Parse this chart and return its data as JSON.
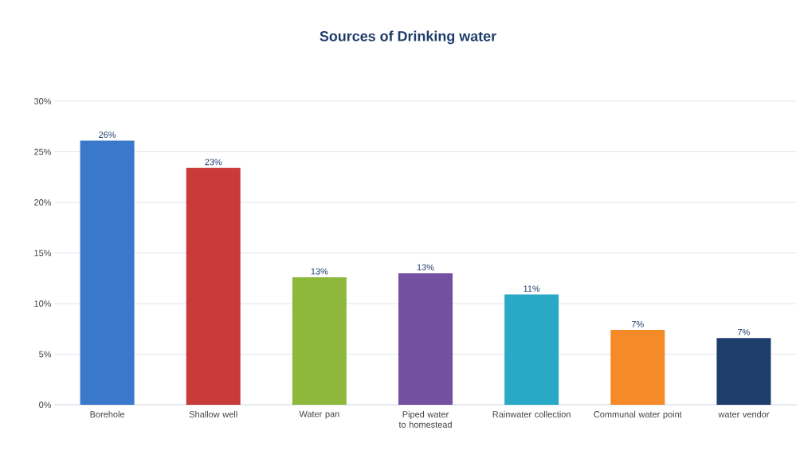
{
  "chart_data": {
    "type": "bar",
    "title": "Sources of Drinking water",
    "categories": [
      "Borehole",
      "Shallow well",
      "Water pan",
      "Piped water to homestead",
      "Rainwater collection",
      "Communal water point",
      "water vendor"
    ],
    "values": [
      26.1,
      23.4,
      12.6,
      13.0,
      10.9,
      7.4,
      6.6
    ],
    "value_labels": [
      "26%",
      "23%",
      "13%",
      "13%",
      "11%",
      "7%",
      "7%"
    ],
    "colors": [
      "#3a78cc",
      "#c93b38",
      "#8db83c",
      "#7350a0",
      "#2aa9c6",
      "#f58a28",
      "#1f3d6b"
    ],
    "ylim": [
      0,
      30
    ],
    "yticks": [
      {
        "value": 0,
        "label": "0%"
      },
      {
        "value": 5,
        "label": "5%"
      },
      {
        "value": 10,
        "label": "10%"
      },
      {
        "value": 15,
        "label": "15%"
      },
      {
        "value": 20,
        "label": "20%"
      },
      {
        "value": 25,
        "label": "25%"
      },
      {
        "value": 30,
        "label": "30%"
      }
    ],
    "grid": "y"
  }
}
